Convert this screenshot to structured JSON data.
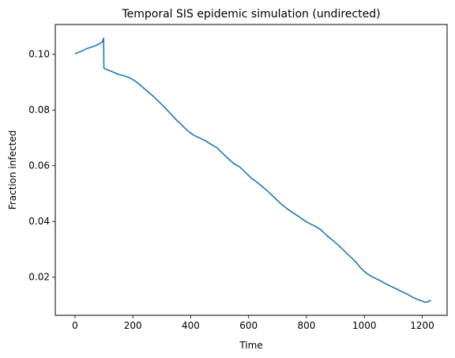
{
  "chart_data": {
    "type": "line",
    "title": "Temporal SIS epidemic simulation (undirected)",
    "xlabel": "Time",
    "ylabel": "Fraction infected",
    "xlim": [
      -68,
      1286
    ],
    "ylim": [
      0.0063,
      0.1107
    ],
    "xticks": [
      0,
      200,
      400,
      600,
      800,
      1000,
      1200
    ],
    "yticks": [
      0.02,
      0.04,
      0.06,
      0.08,
      0.1
    ],
    "ytick_labels": [
      "0.02",
      "0.04",
      "0.06",
      "0.08",
      "0.10"
    ],
    "grid": false,
    "series": [
      {
        "color": "#1f77b4",
        "x": [
          0,
          20,
          40,
          60,
          80,
          95,
          99,
          100,
          110,
          130,
          150,
          170,
          190,
          210,
          230,
          250,
          270,
          290,
          310,
          330,
          350,
          370,
          390,
          410,
          430,
          450,
          470,
          490,
          510,
          530,
          550,
          570,
          590,
          610,
          630,
          650,
          670,
          690,
          710,
          730,
          750,
          770,
          790,
          810,
          830,
          850,
          870,
          890,
          910,
          930,
          950,
          970,
          990,
          1010,
          1030,
          1050,
          1070,
          1090,
          1110,
          1130,
          1150,
          1170,
          1190,
          1210,
          1220,
          1230
        ],
        "y": [
          0.1002,
          0.101,
          0.102,
          0.1027,
          0.1035,
          0.1045,
          0.1058,
          0.095,
          0.0945,
          0.0937,
          0.0928,
          0.0923,
          0.0915,
          0.0903,
          0.0885,
          0.0868,
          0.085,
          0.083,
          0.081,
          0.0787,
          0.0765,
          0.0745,
          0.0725,
          0.071,
          0.07,
          0.069,
          0.0677,
          0.0665,
          0.0645,
          0.0625,
          0.0607,
          0.0595,
          0.0575,
          0.0555,
          0.054,
          0.0523,
          0.0505,
          0.0485,
          0.0465,
          0.0448,
          0.0433,
          0.042,
          0.0405,
          0.0393,
          0.0383,
          0.037,
          0.035,
          0.0333,
          0.0315,
          0.0295,
          0.0275,
          0.0255,
          0.023,
          0.0212,
          0.02,
          0.019,
          0.0178,
          0.0168,
          0.0158,
          0.0148,
          0.0138,
          0.0126,
          0.0118,
          0.011,
          0.0112,
          0.0117
        ]
      }
    ]
  }
}
